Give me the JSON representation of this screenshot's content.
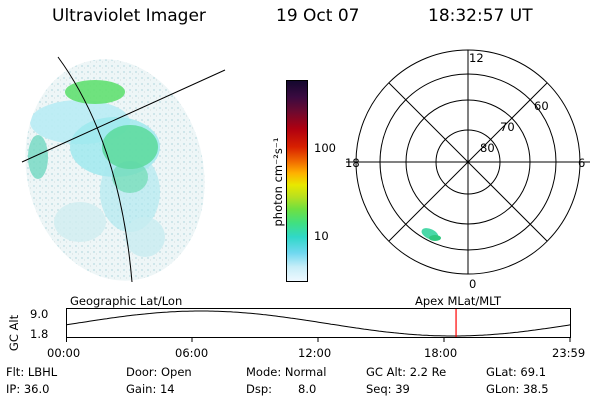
{
  "header": {
    "instrument": "Ultraviolet Imager",
    "date": "19 Oct 07",
    "time": "18:32:57 UT"
  },
  "colorbar": {
    "unit_label": "photon cm⁻²s⁻¹",
    "ticks": [
      "100",
      "10"
    ],
    "colors": [
      "#1a0f3a",
      "#5a0f40",
      "#8a0010",
      "#c00000",
      "#e02000",
      "#f06000",
      "#ffa000",
      "#e8e800",
      "#b0e020",
      "#60e040",
      "#30e0a0",
      "#40d0e0",
      "#a0e8f0",
      "#e0f8ff"
    ]
  },
  "polar_plot": {
    "mlt_labels": {
      "top": "12",
      "left": "18",
      "right": "6",
      "bottom": "0"
    },
    "lat_labels": [
      "80",
      "70",
      "60"
    ]
  },
  "timeline": {
    "left_title": "Geographic Lat/Lon",
    "right_title": "Apex MLat/MLT",
    "y_axis_label": "GC Alt",
    "y_ticks": [
      "9.0",
      "1.8"
    ],
    "x_ticks": [
      "00:00",
      "06:00",
      "12:00",
      "18:00",
      "23:59"
    ],
    "current_time_hours": 18.55,
    "marker_color": "#ff0000"
  },
  "info": {
    "row1": {
      "filter": "Flt: LBHL",
      "door": "Door: Open",
      "mode": "Mode: Normal",
      "gc_alt": "GC Alt: 2.2 Re",
      "glat": "GLat: 69.1"
    },
    "row2": {
      "ip": "IP: 36.0",
      "gain": "Gain: 14",
      "dsp": "Dsp:",
      "dsp_value": "8.0",
      "seq": "Seq: 39",
      "glon": "GLon: 38.5"
    }
  }
}
